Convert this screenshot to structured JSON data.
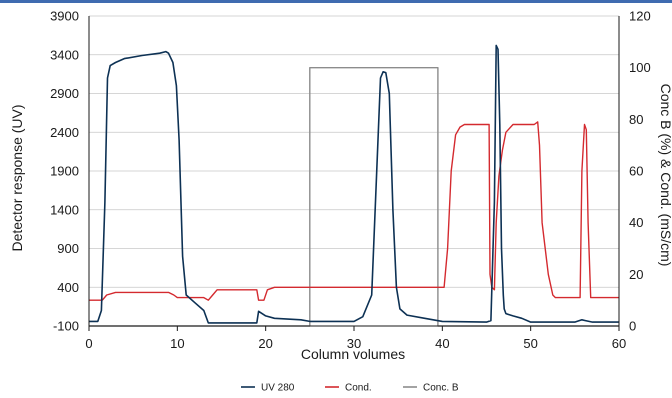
{
  "chart_data": {
    "type": "line",
    "title": "",
    "xlabel": "Column volumes",
    "ylabel_left": "Detector response (UV)",
    "ylabel_right": "Conc B (%) & Cond. (mS/cm)",
    "xlim": [
      0,
      60
    ],
    "ylim_left": [
      -100,
      3900
    ],
    "ylim_right": [
      0,
      120
    ],
    "x_ticks": [
      "0",
      "10",
      "20",
      "30",
      "40",
      "50",
      "60"
    ],
    "y_left_ticks": [
      "-100",
      "400",
      "900",
      "1400",
      "1900",
      "2400",
      "2900",
      "3400",
      "3900"
    ],
    "y_right_ticks": [
      "0",
      "20",
      "40",
      "60",
      "80",
      "100",
      "120"
    ],
    "grid": "horizontal",
    "legend_position": "bottom",
    "series": [
      {
        "name": "UV 280",
        "color": "#0d3154",
        "axis": "left",
        "x": [
          0,
          1,
          1.4,
          1.8,
          2.1,
          2.4,
          3,
          4,
          6,
          8,
          8.7,
          9,
          9.5,
          9.9,
          10.2,
          10.6,
          11,
          12,
          13,
          13.5,
          14,
          19,
          19.2,
          20,
          21,
          24,
          25,
          30,
          31,
          32,
          32.5,
          33,
          33.3,
          33.6,
          34,
          34.4,
          34.8,
          35.2,
          36,
          38,
          40,
          45,
          45.5,
          45.9,
          46.1,
          46.3,
          46.5,
          46.7,
          46.9,
          47,
          47.2,
          48,
          49,
          50,
          55,
          55.8,
          56.2,
          57,
          60
        ],
        "y": [
          -40,
          -40,
          100,
          1500,
          3100,
          3260,
          3300,
          3350,
          3390,
          3420,
          3440,
          3420,
          3300,
          3000,
          2300,
          800,
          300,
          200,
          100,
          -60,
          -60,
          -60,
          90,
          30,
          0,
          -20,
          -40,
          -40,
          20,
          300,
          1700,
          3100,
          3180,
          3170,
          2900,
          1400,
          400,
          120,
          40,
          0,
          -40,
          -50,
          -30,
          1500,
          3520,
          3470,
          2500,
          900,
          300,
          120,
          60,
          30,
          0,
          -50,
          -50,
          -20,
          -30,
          -50,
          -50
        ]
      },
      {
        "name": "Cond.",
        "color": "#d42a2f",
        "axis": "right",
        "x": [
          0,
          1.5,
          2,
          3,
          9,
          9.6,
          10,
          13,
          13.5,
          14,
          14.5,
          15,
          19,
          19.2,
          19.8,
          20.2,
          21,
          25,
          40.2,
          40.6,
          41,
          41.5,
          42,
          42.5,
          45.3,
          45.4,
          45.6,
          45.9,
          46.1,
          46.4,
          46.6,
          46.8,
          47.2,
          48,
          50.4,
          50.8,
          51,
          51.3,
          52,
          52.5,
          52.8,
          53,
          55.6,
          55.8,
          56.1,
          56.3,
          56.5,
          56.8,
          60
        ],
        "y": [
          10,
          10,
          12,
          13,
          13,
          12,
          11,
          11,
          10,
          12,
          14,
          14,
          14,
          10,
          10,
          14,
          15,
          15,
          15,
          30,
          60,
          74,
          77,
          78,
          78,
          20,
          15,
          14,
          40,
          58,
          63,
          68,
          75,
          78,
          78,
          79,
          70,
          40,
          20,
          12,
          11,
          11,
          11,
          60,
          78,
          76,
          40,
          11,
          11
        ]
      },
      {
        "name": "Conc. B",
        "color": "#8c8c8c",
        "axis": "right",
        "x": [
          0,
          25,
          25,
          39.5,
          39.5,
          60
        ],
        "y": [
          0,
          0,
          100,
          100,
          0,
          0
        ]
      }
    ]
  }
}
